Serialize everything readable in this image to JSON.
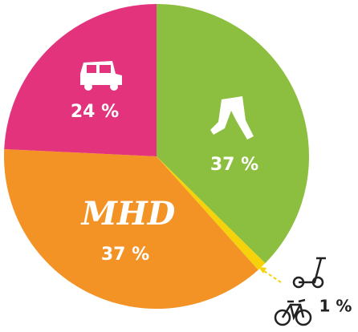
{
  "chart_data": {
    "type": "pie",
    "categories": [
      null,
      null,
      "MHD",
      null
    ],
    "values": [
      37,
      1,
      37,
      24
    ],
    "value_labels": [
      "37 %",
      "1 %",
      "37 %",
      "24 %"
    ],
    "colors": [
      "#8cbf3f",
      "#f5d20a",
      "#f39325",
      "#e3337d"
    ]
  }
}
